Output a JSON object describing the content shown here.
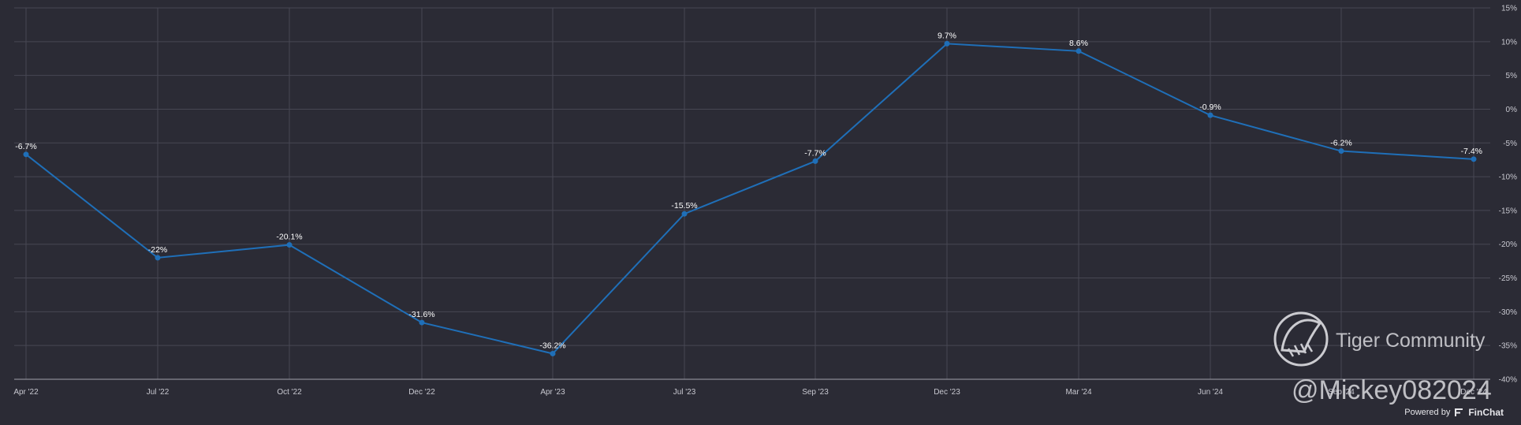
{
  "chart_data": {
    "type": "line",
    "categories": [
      "Apr '22",
      "Jul '22",
      "Oct '22",
      "Dec '22",
      "Apr '23",
      "Jul '23",
      "Sep '23",
      "Dec '23",
      "Mar '24",
      "Jun '24",
      "Sep '24",
      "Dec '24"
    ],
    "series": [
      {
        "values": [
          -6.7,
          -22,
          -20.1,
          -31.6,
          -36.2,
          -15.5,
          -7.7,
          9.7,
          8.6,
          -0.9,
          -6.2,
          -7.4
        ],
        "labels": [
          "-6.7%",
          "-22%",
          "-20.1%",
          "-31.6%",
          "-36.2%",
          "-15.5%",
          "-7.7%",
          "9.7%",
          "8.6%",
          "-0.9%",
          "-6.2%",
          "-7.4%"
        ],
        "color": "#1f6fb8"
      }
    ],
    "ylim": [
      -40,
      15
    ],
    "y_ticks": [
      "15%",
      "10%",
      "5%",
      "0%",
      "-5%",
      "-10%",
      "-15%",
      "-20%",
      "-25%",
      "-30%",
      "-35%",
      "-40%"
    ],
    "y_axis_side": "right",
    "grid": true
  },
  "colors": {
    "background": "#2b2b35",
    "grid": "#474753",
    "line": "#1f6fb8"
  },
  "watermark": {
    "community": "Tiger Community",
    "handle": "@Mickey082024"
  },
  "footer": {
    "powered_by": "Powered by",
    "brand": "FinChat",
    "brand_icon": "finchat-icon"
  }
}
